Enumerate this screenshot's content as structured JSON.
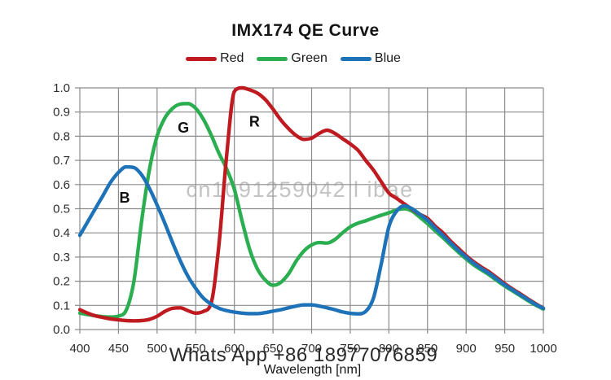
{
  "title": "IMX174 QE Curve",
  "legend": [
    {
      "label": "Red",
      "color": "#bf1a1f"
    },
    {
      "label": "Green",
      "color": "#2bae50"
    },
    {
      "label": "Blue",
      "color": "#1d72b8"
    }
  ],
  "watermark": {
    "text": "cn1091259042 l ibae",
    "color": "#a0a0a0"
  },
  "overlay_text": "Whats App +86 18977076859",
  "colors": {
    "grid": "#8c8c8c",
    "tick_text": "#2b2b2b",
    "annotation": "#111111"
  },
  "chart_data": {
    "type": "line",
    "title": "IMX174 QE Curve",
    "xlabel": "Wavelength [nm]",
    "ylabel": "",
    "xlim": [
      400,
      1000
    ],
    "ylim": [
      0,
      1
    ],
    "grid": true,
    "legend_position": "top",
    "x_ticks": [
      400,
      450,
      500,
      550,
      600,
      650,
      700,
      750,
      800,
      850,
      900,
      950,
      1000
    ],
    "y_ticks": [
      "0.0",
      "0.1",
      "0.2",
      "0.3",
      "0.4",
      "0.5",
      "0.6",
      "0.7",
      "0.8",
      "0.9",
      "1.0"
    ],
    "x": [
      400,
      410,
      420,
      430,
      440,
      450,
      460,
      470,
      480,
      490,
      500,
      510,
      520,
      530,
      540,
      550,
      560,
      570,
      580,
      590,
      600,
      610,
      620,
      630,
      640,
      650,
      660,
      670,
      680,
      690,
      700,
      710,
      720,
      730,
      740,
      750,
      760,
      770,
      780,
      790,
      800,
      810,
      820,
      830,
      840,
      850,
      860,
      870,
      880,
      890,
      900,
      910,
      920,
      930,
      940,
      950,
      960,
      970,
      980,
      990,
      1000
    ],
    "series": [
      {
        "name": "Green",
        "color": "#2bae50",
        "values": [
          0.068,
          0.062,
          0.057,
          0.053,
          0.052,
          0.056,
          0.08,
          0.2,
          0.45,
          0.66,
          0.8,
          0.875,
          0.915,
          0.933,
          0.935,
          0.915,
          0.87,
          0.805,
          0.73,
          0.665,
          0.58,
          0.45,
          0.33,
          0.25,
          0.205,
          0.183,
          0.195,
          0.23,
          0.283,
          0.325,
          0.35,
          0.36,
          0.358,
          0.372,
          0.4,
          0.425,
          0.44,
          0.45,
          0.462,
          0.473,
          0.483,
          0.495,
          0.5,
          0.49,
          0.465,
          0.438,
          0.408,
          0.38,
          0.35,
          0.32,
          0.292,
          0.267,
          0.246,
          0.226,
          0.202,
          0.18,
          0.16,
          0.14,
          0.12,
          0.101,
          0.085
        ]
      },
      {
        "name": "Red",
        "color": "#bf1a1f",
        "values": [
          0.082,
          0.068,
          0.057,
          0.05,
          0.044,
          0.04,
          0.037,
          0.036,
          0.037,
          0.042,
          0.055,
          0.075,
          0.088,
          0.09,
          0.078,
          0.068,
          0.075,
          0.11,
          0.35,
          0.72,
          0.985,
          1.0,
          0.992,
          0.978,
          0.952,
          0.912,
          0.868,
          0.832,
          0.803,
          0.787,
          0.792,
          0.812,
          0.825,
          0.812,
          0.79,
          0.768,
          0.742,
          0.7,
          0.66,
          0.612,
          0.565,
          0.543,
          0.52,
          0.498,
          0.477,
          0.46,
          0.428,
          0.4,
          0.366,
          0.336,
          0.306,
          0.28,
          0.258,
          0.238,
          0.214,
          0.19,
          0.168,
          0.148,
          0.127,
          0.107,
          0.088
        ]
      },
      {
        "name": "Blue",
        "color": "#1d72b8",
        "values": [
          0.39,
          0.445,
          0.5,
          0.555,
          0.61,
          0.65,
          0.673,
          0.67,
          0.64,
          0.585,
          0.515,
          0.44,
          0.36,
          0.285,
          0.22,
          0.17,
          0.13,
          0.105,
          0.088,
          0.078,
          0.072,
          0.068,
          0.066,
          0.066,
          0.07,
          0.076,
          0.082,
          0.09,
          0.097,
          0.102,
          0.102,
          0.097,
          0.09,
          0.082,
          0.073,
          0.067,
          0.065,
          0.075,
          0.13,
          0.27,
          0.425,
          0.49,
          0.512,
          0.5,
          0.477,
          0.452,
          0.42,
          0.39,
          0.358,
          0.328,
          0.3,
          0.274,
          0.252,
          0.232,
          0.208,
          0.185,
          0.164,
          0.144,
          0.124,
          0.104,
          0.088
        ]
      }
    ],
    "annotations": [
      {
        "text": "B",
        "x": 458,
        "y": 0.545
      },
      {
        "text": "G",
        "x": 534,
        "y": 0.835
      },
      {
        "text": "R",
        "x": 626,
        "y": 0.86
      }
    ]
  }
}
